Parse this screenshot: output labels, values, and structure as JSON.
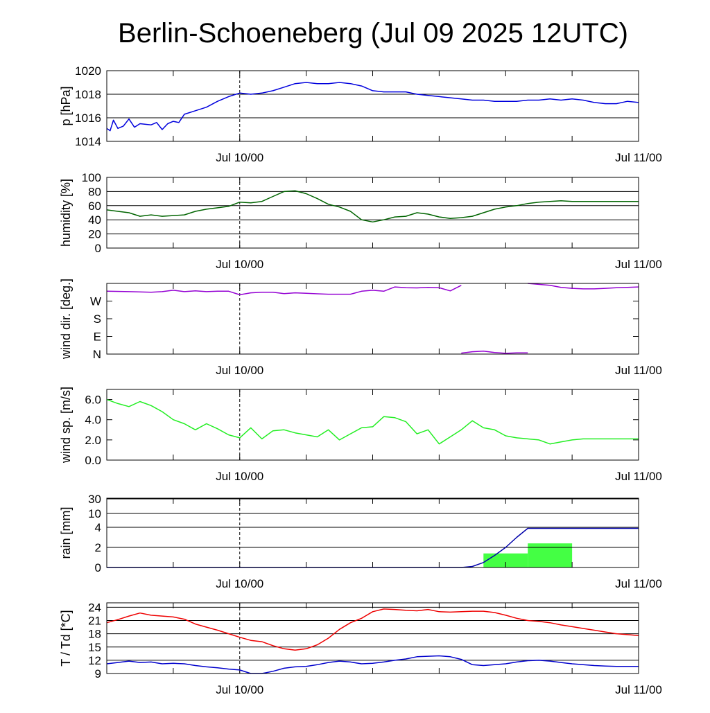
{
  "title": "Berlin-Schoeneberg (Jul 09 2025 12UTC)",
  "colors": {
    "pressure": "#0000dd",
    "humidity": "#006400",
    "wind_dir": "#9400d3",
    "wind_speed": "#22ee22",
    "rain_total": "#0000aa",
    "rain_bar": "#44ff44",
    "temperature": "#ee0000",
    "dewpoint": "#0000cc"
  },
  "chart_data": [
    {
      "type": "line",
      "ylabel": "p [hPa]",
      "ylim": [
        1014,
        1020
      ],
      "yticks": [
        1014,
        1016,
        1018,
        1020
      ],
      "ytick_labels": [
        "1014",
        "1016",
        "1018",
        "1020"
      ],
      "x_hours": [
        0,
        48
      ],
      "xtick_labels": [
        {
          "h": 12,
          "label": "Jul 10/00"
        },
        {
          "h": 48,
          "label": "Jul 11/00"
        }
      ],
      "grid": true,
      "series": [
        {
          "key": "pressure",
          "x": [
            0,
            0.3,
            0.6,
            1,
            1.5,
            2,
            2.5,
            3,
            4,
            4.5,
            5,
            5.5,
            6,
            6.5,
            7,
            8,
            9,
            10,
            11,
            12,
            13,
            14,
            15,
            16,
            17,
            18,
            19,
            20,
            21,
            22,
            23,
            24,
            25,
            26,
            27,
            28,
            29,
            30,
            31,
            32,
            33,
            34,
            35,
            36,
            37,
            38,
            39,
            40,
            41,
            42,
            43,
            44,
            45,
            46,
            47,
            48
          ],
          "y": [
            1015.1,
            1014.9,
            1015.8,
            1015.1,
            1015.3,
            1015.9,
            1015.2,
            1015.5,
            1015.4,
            1015.6,
            1015.0,
            1015.5,
            1015.7,
            1015.6,
            1016.3,
            1016.6,
            1016.9,
            1017.4,
            1017.8,
            1018.1,
            1018.0,
            1018.1,
            1018.3,
            1018.6,
            1018.9,
            1019.0,
            1018.9,
            1018.9,
            1019.0,
            1018.9,
            1018.7,
            1018.3,
            1018.2,
            1018.2,
            1018.2,
            1018.0,
            1017.9,
            1017.8,
            1017.7,
            1017.6,
            1017.5,
            1017.5,
            1017.4,
            1017.4,
            1017.4,
            1017.5,
            1017.5,
            1017.6,
            1017.5,
            1017.6,
            1017.5,
            1017.3,
            1017.2,
            1017.2,
            1017.4,
            1017.3
          ]
        }
      ]
    },
    {
      "type": "line",
      "ylabel": "humidity [%]",
      "ylim": [
        0,
        100
      ],
      "yticks": [
        0,
        20,
        40,
        60,
        80,
        100
      ],
      "ytick_labels": [
        "0",
        "20",
        "40",
        "60",
        "80",
        "100"
      ],
      "x_hours": [
        0,
        48
      ],
      "xtick_labels": [
        {
          "h": 12,
          "label": "Jul 10/00"
        },
        {
          "h": 48,
          "label": "Jul 11/00"
        }
      ],
      "grid": true,
      "series": [
        {
          "key": "humidity",
          "x": [
            0,
            1,
            2,
            3,
            4,
            5,
            6,
            7,
            8,
            9,
            10,
            11,
            12,
            13,
            14,
            15,
            16,
            17,
            18,
            19,
            20,
            21,
            22,
            23,
            24,
            25,
            26,
            27,
            28,
            29,
            30,
            31,
            32,
            33,
            34,
            35,
            36,
            37,
            38,
            39,
            40,
            41,
            42,
            43,
            44,
            45,
            46,
            47,
            48
          ],
          "y": [
            54,
            52,
            50,
            45,
            47,
            45,
            46,
            47,
            52,
            55,
            57,
            59,
            65,
            64,
            66,
            73,
            80,
            81,
            77,
            70,
            62,
            58,
            52,
            40,
            37,
            40,
            44,
            45,
            50,
            48,
            44,
            42,
            43,
            45,
            50,
            55,
            58,
            60,
            63,
            65,
            66,
            67,
            66,
            66,
            66,
            66,
            66,
            66,
            66
          ]
        }
      ]
    },
    {
      "type": "line",
      "ylabel": "wind dir. [deg.]",
      "ylim": [
        0,
        360
      ],
      "yticks": [
        0,
        90,
        180,
        270
      ],
      "ytick_labels": [
        "N",
        "E",
        "S",
        "W"
      ],
      "x_hours": [
        0,
        48
      ],
      "xtick_labels": [
        {
          "h": 12,
          "label": "Jul 10/00"
        },
        {
          "h": 48,
          "label": "Jul 11/00"
        }
      ],
      "grid": false,
      "series": [
        {
          "key": "wind_dir",
          "x": [
            0,
            2,
            4,
            5,
            6,
            7,
            8,
            9,
            10,
            11,
            12,
            13,
            14,
            15,
            16,
            17,
            18,
            19,
            20,
            21,
            22,
            23,
            24,
            25,
            26,
            27,
            28,
            29,
            30,
            31,
            32
          ],
          "y": [
            320,
            318,
            315,
            318,
            325,
            318,
            322,
            318,
            320,
            320,
            302,
            312,
            315,
            315,
            308,
            312,
            310,
            307,
            305,
            305,
            305,
            320,
            325,
            320,
            342,
            338,
            337,
            340,
            338,
            322,
            350
          ]
        },
        {
          "key": "wind_dir",
          "x": [
            32,
            33,
            34,
            35,
            36,
            37,
            38
          ],
          "y": [
            5,
            12,
            15,
            8,
            4,
            6,
            6
          ]
        },
        {
          "key": "wind_dir",
          "x": [
            38,
            40,
            41,
            42,
            43,
            44,
            45,
            46,
            47,
            48
          ],
          "y": [
            360,
            350,
            340,
            335,
            332,
            332,
            335,
            338,
            340,
            342
          ]
        }
      ]
    },
    {
      "type": "line",
      "ylabel": "wind sp. [m/s]",
      "ylim": [
        0,
        7
      ],
      "yticks": [
        0,
        2,
        4,
        6
      ],
      "ytick_labels": [
        "0.0",
        "2.0",
        "4.0",
        "6.0"
      ],
      "x_hours": [
        0,
        48
      ],
      "xtick_labels": [
        {
          "h": 12,
          "label": "Jul 10/00"
        },
        {
          "h": 48,
          "label": "Jul 11/00"
        }
      ],
      "grid": false,
      "series": [
        {
          "key": "wind_speed",
          "x": [
            0,
            1,
            2,
            3,
            4,
            5,
            6,
            7,
            8,
            9,
            10,
            11,
            12,
            13,
            14,
            15,
            16,
            17,
            18,
            19,
            20,
            21,
            22,
            23,
            24,
            25,
            26,
            27,
            28,
            29,
            30,
            31,
            32,
            33,
            34,
            35,
            36,
            37,
            38,
            39,
            40,
            41,
            42,
            43,
            44,
            45,
            46,
            47,
            48
          ],
          "y": [
            6.0,
            5.6,
            5.3,
            5.8,
            5.4,
            4.8,
            4.0,
            3.6,
            3.0,
            3.6,
            3.1,
            2.5,
            2.2,
            3.2,
            2.1,
            2.9,
            3.0,
            2.7,
            2.5,
            2.3,
            3.0,
            2.0,
            2.6,
            3.2,
            3.3,
            4.3,
            4.2,
            3.8,
            2.6,
            3.0,
            1.6,
            2.3,
            3.0,
            3.9,
            3.2,
            3.0,
            2.4,
            2.2,
            2.1,
            2.0,
            1.6,
            1.8,
            2.0,
            2.1,
            2.1,
            2.1,
            2.1,
            2.1,
            2.1
          ]
        }
      ]
    },
    {
      "type": "bar",
      "ylabel": "rain [mm]",
      "ylim": [
        0,
        30
      ],
      "yticks": [
        0,
        2,
        4,
        10,
        30
      ],
      "ytick_labels": [
        "0",
        "2",
        "4",
        "10",
        "30"
      ],
      "x_hours": [
        0,
        48
      ],
      "xtick_labels": [
        {
          "h": 12,
          "label": "Jul 10/00"
        },
        {
          "h": 48,
          "label": "Jul 11/00"
        }
      ],
      "grid": true,
      "bars": [
        {
          "x0": 34,
          "x1": 38,
          "value": 1.4
        },
        {
          "x0": 38,
          "x1": 42,
          "value": 2.4
        }
      ],
      "series": [
        {
          "key": "rain_total",
          "x": [
            0,
            32,
            33,
            34,
            35,
            36,
            37,
            38,
            48
          ],
          "y": [
            0,
            0,
            0.1,
            0.5,
            1.2,
            2.0,
            3.0,
            3.9,
            3.9
          ]
        }
      ]
    },
    {
      "type": "line",
      "ylabel": "T / Td [*C]",
      "ylim": [
        9,
        25
      ],
      "yticks": [
        9,
        12,
        15,
        18,
        21,
        24
      ],
      "ytick_labels": [
        "9",
        "12",
        "15",
        "18",
        "21",
        "24"
      ],
      "x_hours": [
        0,
        48
      ],
      "xtick_labels": [
        {
          "h": 12,
          "label": "Jul 10/00"
        },
        {
          "h": 48,
          "label": "Jul 11/00"
        }
      ],
      "grid": true,
      "series": [
        {
          "key": "temperature",
          "x": [
            0,
            1,
            2,
            3,
            4,
            5,
            6,
            7,
            8,
            9,
            10,
            11,
            12,
            13,
            14,
            15,
            16,
            17,
            18,
            19,
            20,
            21,
            22,
            23,
            24,
            25,
            26,
            27,
            28,
            29,
            30,
            31,
            32,
            33,
            34,
            35,
            36,
            37,
            38,
            39,
            40,
            41,
            42,
            43,
            44,
            45,
            46,
            47,
            48
          ],
          "y": [
            20.5,
            21.2,
            22.0,
            22.7,
            22.2,
            22.0,
            21.8,
            21.3,
            20.2,
            19.5,
            18.8,
            18.0,
            17.2,
            16.5,
            16.2,
            15.3,
            14.6,
            14.3,
            14.6,
            15.5,
            17.0,
            19.0,
            20.5,
            21.5,
            23.0,
            23.6,
            23.5,
            23.3,
            23.2,
            23.5,
            23.0,
            22.9,
            23.0,
            23.1,
            23.1,
            22.8,
            22.2,
            21.5,
            21.0,
            20.8,
            20.5,
            20.0,
            19.6,
            19.2,
            18.8,
            18.4,
            18.0,
            17.8,
            17.6
          ]
        },
        {
          "key": "dewpoint",
          "x": [
            0,
            1,
            2,
            3,
            4,
            5,
            6,
            7,
            8,
            9,
            10,
            11,
            12,
            13,
            14,
            15,
            16,
            17,
            18,
            19,
            20,
            21,
            22,
            23,
            24,
            25,
            26,
            27,
            28,
            29,
            30,
            31,
            32,
            33,
            34,
            35,
            36,
            37,
            38,
            39,
            40,
            41,
            42,
            43,
            44,
            45,
            46,
            47,
            48
          ],
          "y": [
            11.2,
            11.5,
            11.8,
            11.5,
            11.6,
            11.2,
            11.3,
            11.2,
            10.8,
            10.5,
            10.3,
            10.0,
            9.8,
            9.0,
            9.0,
            9.5,
            10.2,
            10.5,
            10.6,
            11.0,
            11.5,
            11.8,
            11.6,
            11.2,
            11.3,
            11.6,
            12.0,
            12.3,
            12.8,
            12.9,
            13.0,
            12.8,
            12.2,
            11.0,
            10.8,
            11.0,
            11.2,
            11.6,
            11.9,
            12.0,
            11.8,
            11.5,
            11.2,
            11.0,
            10.8,
            10.7,
            10.6,
            10.6,
            10.6
          ]
        }
      ]
    }
  ]
}
